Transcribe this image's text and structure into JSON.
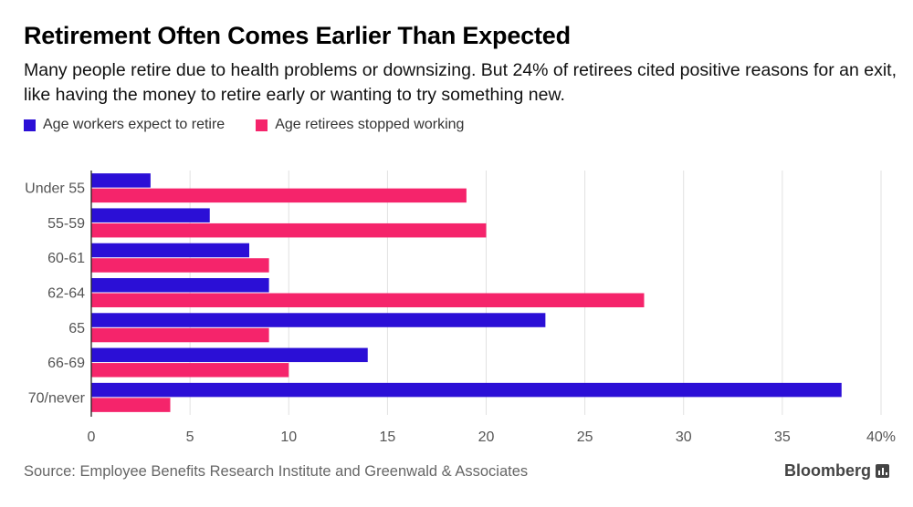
{
  "header": {
    "title": "Retirement Often Comes Earlier Than Expected",
    "subtitle": "Many people retire due to health problems or downsizing. But 24% of retirees cited positive reasons for an exit, like having the money to retire early or wanting to try something new."
  },
  "legend": [
    {
      "label": "Age workers expect to retire",
      "color": "#2b0fd6"
    },
    {
      "label": "Age retirees stopped working",
      "color": "#f5246b"
    }
  ],
  "footer": {
    "source": "Source: Employee Benefits Research Institute and Greenwald & Associates",
    "brand": "Bloomberg"
  },
  "chart_data": {
    "type": "bar",
    "orientation": "horizontal",
    "categories": [
      "Under 55",
      "55-59",
      "60-61",
      "62-64",
      "65",
      "66-69",
      "70/never"
    ],
    "series": [
      {
        "name": "Age workers expect to retire",
        "color": "#2b0fd6",
        "values": [
          3,
          6,
          8,
          9,
          23,
          14,
          38
        ]
      },
      {
        "name": "Age retirees stopped working",
        "color": "#f5246b",
        "values": [
          19,
          20,
          9,
          28,
          9,
          10,
          4
        ]
      }
    ],
    "xlim": [
      0,
      40
    ],
    "xticks": [
      "0",
      "5",
      "10",
      "15",
      "20",
      "25",
      "30",
      "35",
      "40%"
    ],
    "grid": "vertical"
  }
}
